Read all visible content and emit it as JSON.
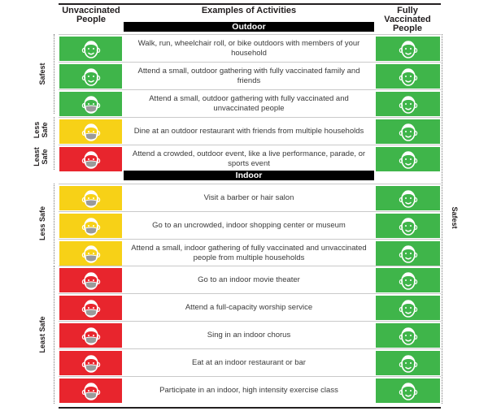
{
  "headers": {
    "left": "Unvaccinated People",
    "middle": "Examples of Activities",
    "right": "Fully Vaccinated People"
  },
  "sections": {
    "outdoor": "Outdoor",
    "indoor": "Indoor"
  },
  "risk_labels": {
    "safest": "Safest",
    "less_safe": "Less Safe",
    "least_safe": "Least Safe",
    "right_safest": "Safest"
  },
  "colors": {
    "green": "#3fb54a",
    "yellow": "#f7d117",
    "red": "#e8252d",
    "mask": "#9a9a9a"
  },
  "activities": [
    {
      "text": "Walk, run, wheelchair roll, or bike outdoors with members of your household",
      "color": "green",
      "mask": false
    },
    {
      "text": "Attend a small, outdoor gathering with fully vaccinated family and friends",
      "color": "green",
      "mask": false
    },
    {
      "text": "Attend a small, outdoor gathering with fully vaccinated and unvaccinated people",
      "color": "green",
      "mask": true
    },
    {
      "text": "Dine at an outdoor restaurant with friends from multiple households",
      "color": "yellow",
      "mask": true
    },
    {
      "text": "Attend a crowded, outdoor event, like a live performance, parade, or sports event",
      "color": "red",
      "mask": true
    },
    {
      "text": "Visit a barber or hair salon",
      "color": "yellow",
      "mask": true
    },
    {
      "text": "Go to an uncrowded, indoor shopping center or museum",
      "color": "yellow",
      "mask": true
    },
    {
      "text": "Attend a small, indoor gathering of fully vaccinated and unvaccinated people from multiple households",
      "color": "yellow",
      "mask": true
    },
    {
      "text": "Go to an indoor movie theater",
      "color": "red",
      "mask": true
    },
    {
      "text": "Attend a full-capacity worship service",
      "color": "red",
      "mask": true
    },
    {
      "text": "Sing in an indoor chorus",
      "color": "red",
      "mask": true
    },
    {
      "text": "Eat at an indoor restaurant or bar",
      "color": "red",
      "mask": true
    },
    {
      "text": "Participate in an indoor, high intensity exercise class",
      "color": "red",
      "mask": true
    }
  ],
  "right_column": {
    "color": "green",
    "mask": false
  }
}
